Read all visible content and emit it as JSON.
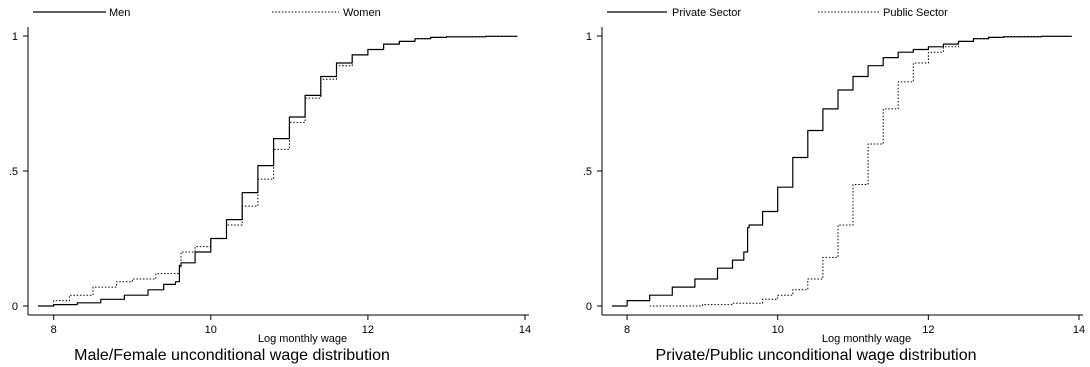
{
  "chart_data": [
    {
      "type": "line",
      "title": "Male/Female unconditional wage distribution",
      "xlabel": "Log monthly wage",
      "ylabel": "",
      "xlim": [
        7.8,
        14.0
      ],
      "ylim": [
        0,
        1
      ],
      "x_ticks": [
        8,
        10,
        12,
        14
      ],
      "y_ticks": [
        0,
        0.5,
        1
      ],
      "y_tick_labels": [
        "0",
        ".5",
        "1"
      ],
      "grid": false,
      "legend_position": "top",
      "series": [
        {
          "name": "Men",
          "style": "solid",
          "x": [
            7.8,
            8.0,
            8.3,
            8.6,
            8.9,
            9.2,
            9.4,
            9.55,
            9.6,
            9.62,
            9.8,
            10.0,
            10.2,
            10.4,
            10.6,
            10.8,
            11.0,
            11.2,
            11.4,
            11.6,
            11.8,
            12.0,
            12.2,
            12.4,
            12.6,
            12.8,
            13.0,
            13.5,
            13.9
          ],
          "values": [
            0.0,
            0.005,
            0.012,
            0.025,
            0.04,
            0.06,
            0.08,
            0.09,
            0.15,
            0.16,
            0.2,
            0.25,
            0.32,
            0.42,
            0.52,
            0.62,
            0.7,
            0.78,
            0.85,
            0.9,
            0.93,
            0.95,
            0.97,
            0.98,
            0.99,
            0.995,
            0.997,
            0.999,
            1.0
          ]
        },
        {
          "name": "Women",
          "style": "dotted",
          "x": [
            7.8,
            8.0,
            8.2,
            8.5,
            8.8,
            9.0,
            9.3,
            9.6,
            9.62,
            9.8,
            10.0,
            10.2,
            10.4,
            10.6,
            10.8,
            11.0,
            11.2,
            11.4,
            11.6,
            11.8,
            12.0,
            12.2,
            12.4,
            12.6,
            12.8,
            13.0,
            13.5,
            13.9
          ],
          "values": [
            0.0,
            0.02,
            0.04,
            0.07,
            0.09,
            0.1,
            0.12,
            0.14,
            0.2,
            0.22,
            0.25,
            0.3,
            0.37,
            0.47,
            0.58,
            0.68,
            0.77,
            0.84,
            0.89,
            0.93,
            0.95,
            0.97,
            0.98,
            0.99,
            0.995,
            0.997,
            0.999,
            1.0
          ]
        }
      ]
    },
    {
      "type": "line",
      "title": "Private/Public unconditional wage distribution",
      "xlabel": "Log monthly wage",
      "ylabel": "",
      "xlim": [
        7.8,
        14.0
      ],
      "ylim": [
        0,
        1
      ],
      "x_ticks": [
        8,
        10,
        12,
        14
      ],
      "y_ticks": [
        0,
        0.5,
        1
      ],
      "y_tick_labels": [
        "0",
        ".5",
        "1"
      ],
      "grid": false,
      "legend_position": "top",
      "series": [
        {
          "name": "Private Sector",
          "style": "solid",
          "x": [
            7.8,
            8.0,
            8.3,
            8.6,
            8.9,
            9.2,
            9.4,
            9.55,
            9.6,
            9.62,
            9.8,
            10.0,
            10.2,
            10.4,
            10.6,
            10.8,
            11.0,
            11.2,
            11.4,
            11.6,
            11.8,
            12.0,
            12.2,
            12.4,
            12.6,
            12.8,
            13.0,
            13.5,
            13.9
          ],
          "values": [
            0.0,
            0.02,
            0.04,
            0.07,
            0.1,
            0.14,
            0.17,
            0.2,
            0.29,
            0.3,
            0.35,
            0.44,
            0.55,
            0.65,
            0.73,
            0.8,
            0.85,
            0.89,
            0.92,
            0.94,
            0.95,
            0.96,
            0.97,
            0.98,
            0.99,
            0.995,
            0.997,
            0.999,
            1.0
          ]
        },
        {
          "name": "Public Sector",
          "style": "dotted",
          "x": [
            8.3,
            8.6,
            9.0,
            9.4,
            9.8,
            10.0,
            10.2,
            10.4,
            10.6,
            10.8,
            11.0,
            11.2,
            11.4,
            11.6,
            11.8,
            12.0,
            12.2,
            12.4,
            12.6,
            12.8,
            13.0,
            13.5,
            13.9
          ],
          "values": [
            0.0,
            0.0,
            0.005,
            0.01,
            0.025,
            0.04,
            0.06,
            0.1,
            0.18,
            0.3,
            0.45,
            0.6,
            0.73,
            0.83,
            0.9,
            0.94,
            0.96,
            0.98,
            0.99,
            0.995,
            0.998,
            0.999,
            1.0
          ]
        }
      ]
    }
  ]
}
